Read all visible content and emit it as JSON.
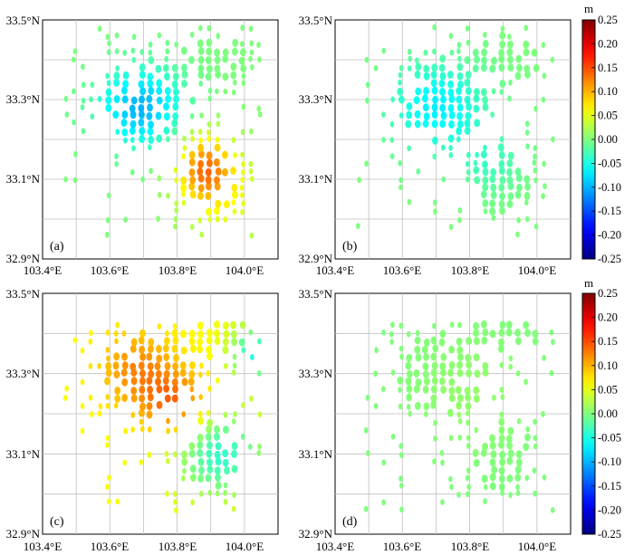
{
  "chart_data": [
    {
      "type": "scatter",
      "panel_label": "(a)",
      "xlim": [
        103.4,
        104.1
      ],
      "ylim": [
        32.9,
        33.5
      ],
      "x_ticks": [
        "103.4°E",
        "103.6°E",
        "103.8°E",
        "104.0°E"
      ],
      "y_ticks": [
        "32.9°N",
        "33.1°N",
        "33.3°N",
        "33.5°N"
      ],
      "grid": true,
      "field": {
        "background": 0.0,
        "features": [
          {
            "lon": 103.69,
            "lat": 33.28,
            "sigma_lon": 0.09,
            "sigma_lat": 0.07,
            "value": -0.1
          },
          {
            "lon": 103.88,
            "lat": 33.13,
            "sigma_lon": 0.06,
            "sigma_lat": 0.06,
            "value": 0.11
          },
          {
            "lon": 103.95,
            "lat": 33.05,
            "sigma_lon": 0.1,
            "sigma_lat": 0.1,
            "value": 0.05
          }
        ]
      }
    },
    {
      "type": "scatter",
      "panel_label": "(b)",
      "xlim": [
        103.4,
        104.1
      ],
      "ylim": [
        32.9,
        33.5
      ],
      "x_ticks": [
        "103.4°E",
        "103.6°E",
        "103.8°E",
        "104.0°E"
      ],
      "y_ticks": [
        "32.9°N",
        "33.1°N",
        "33.3°N",
        "33.5°N"
      ],
      "grid": true,
      "field": {
        "background": 0.0,
        "features": [
          {
            "lon": 103.7,
            "lat": 33.28,
            "sigma_lon": 0.1,
            "sigma_lat": 0.08,
            "value": -0.07
          },
          {
            "lon": 103.86,
            "lat": 33.15,
            "sigma_lon": 0.07,
            "sigma_lat": 0.06,
            "value": -0.03
          }
        ]
      }
    },
    {
      "type": "scatter",
      "panel_label": "(c)",
      "xlim": [
        103.4,
        104.1
      ],
      "ylim": [
        32.9,
        33.5
      ],
      "x_ticks": [
        "103.4°E",
        "103.6°E",
        "103.8°E",
        "104.0°E"
      ],
      "y_ticks": [
        "32.9°N",
        "33.1°N",
        "33.3°N",
        "33.5°N"
      ],
      "grid": true,
      "field": {
        "background": 0.06,
        "features": [
          {
            "lon": 103.68,
            "lat": 33.31,
            "sigma_lon": 0.08,
            "sigma_lat": 0.07,
            "value": 0.12
          },
          {
            "lon": 103.8,
            "lat": 33.22,
            "sigma_lon": 0.07,
            "sigma_lat": 0.06,
            "value": 0.14
          },
          {
            "lon": 103.93,
            "lat": 33.1,
            "sigma_lon": 0.1,
            "sigma_lat": 0.08,
            "value": -0.04
          },
          {
            "lon": 104.03,
            "lat": 33.35,
            "sigma_lon": 0.05,
            "sigma_lat": 0.05,
            "value": -0.05
          }
        ]
      }
    },
    {
      "type": "scatter",
      "panel_label": "(d)",
      "xlim": [
        103.4,
        104.1
      ],
      "ylim": [
        32.9,
        33.5
      ],
      "x_ticks": [
        "103.4°E",
        "103.6°E",
        "103.8°E",
        "104.0°E"
      ],
      "y_ticks": [
        "32.9°N",
        "33.1°N",
        "33.3°N",
        "33.5°N"
      ],
      "grid": true,
      "field": {
        "background": 0.0,
        "features": [
          {
            "lon": 103.8,
            "lat": 33.25,
            "sigma_lon": 0.12,
            "sigma_lat": 0.1,
            "value": 0.01
          }
        ]
      }
    }
  ],
  "colorbar": {
    "unit": "m",
    "colormap": "jet",
    "range": [
      -0.25,
      0.25
    ],
    "ticks": [
      "0.25",
      "0.20",
      "0.15",
      "0.10",
      "0.05",
      "0.00",
      "-0.05",
      "-0.10",
      "-0.15",
      "-0.20",
      "-0.25"
    ]
  }
}
